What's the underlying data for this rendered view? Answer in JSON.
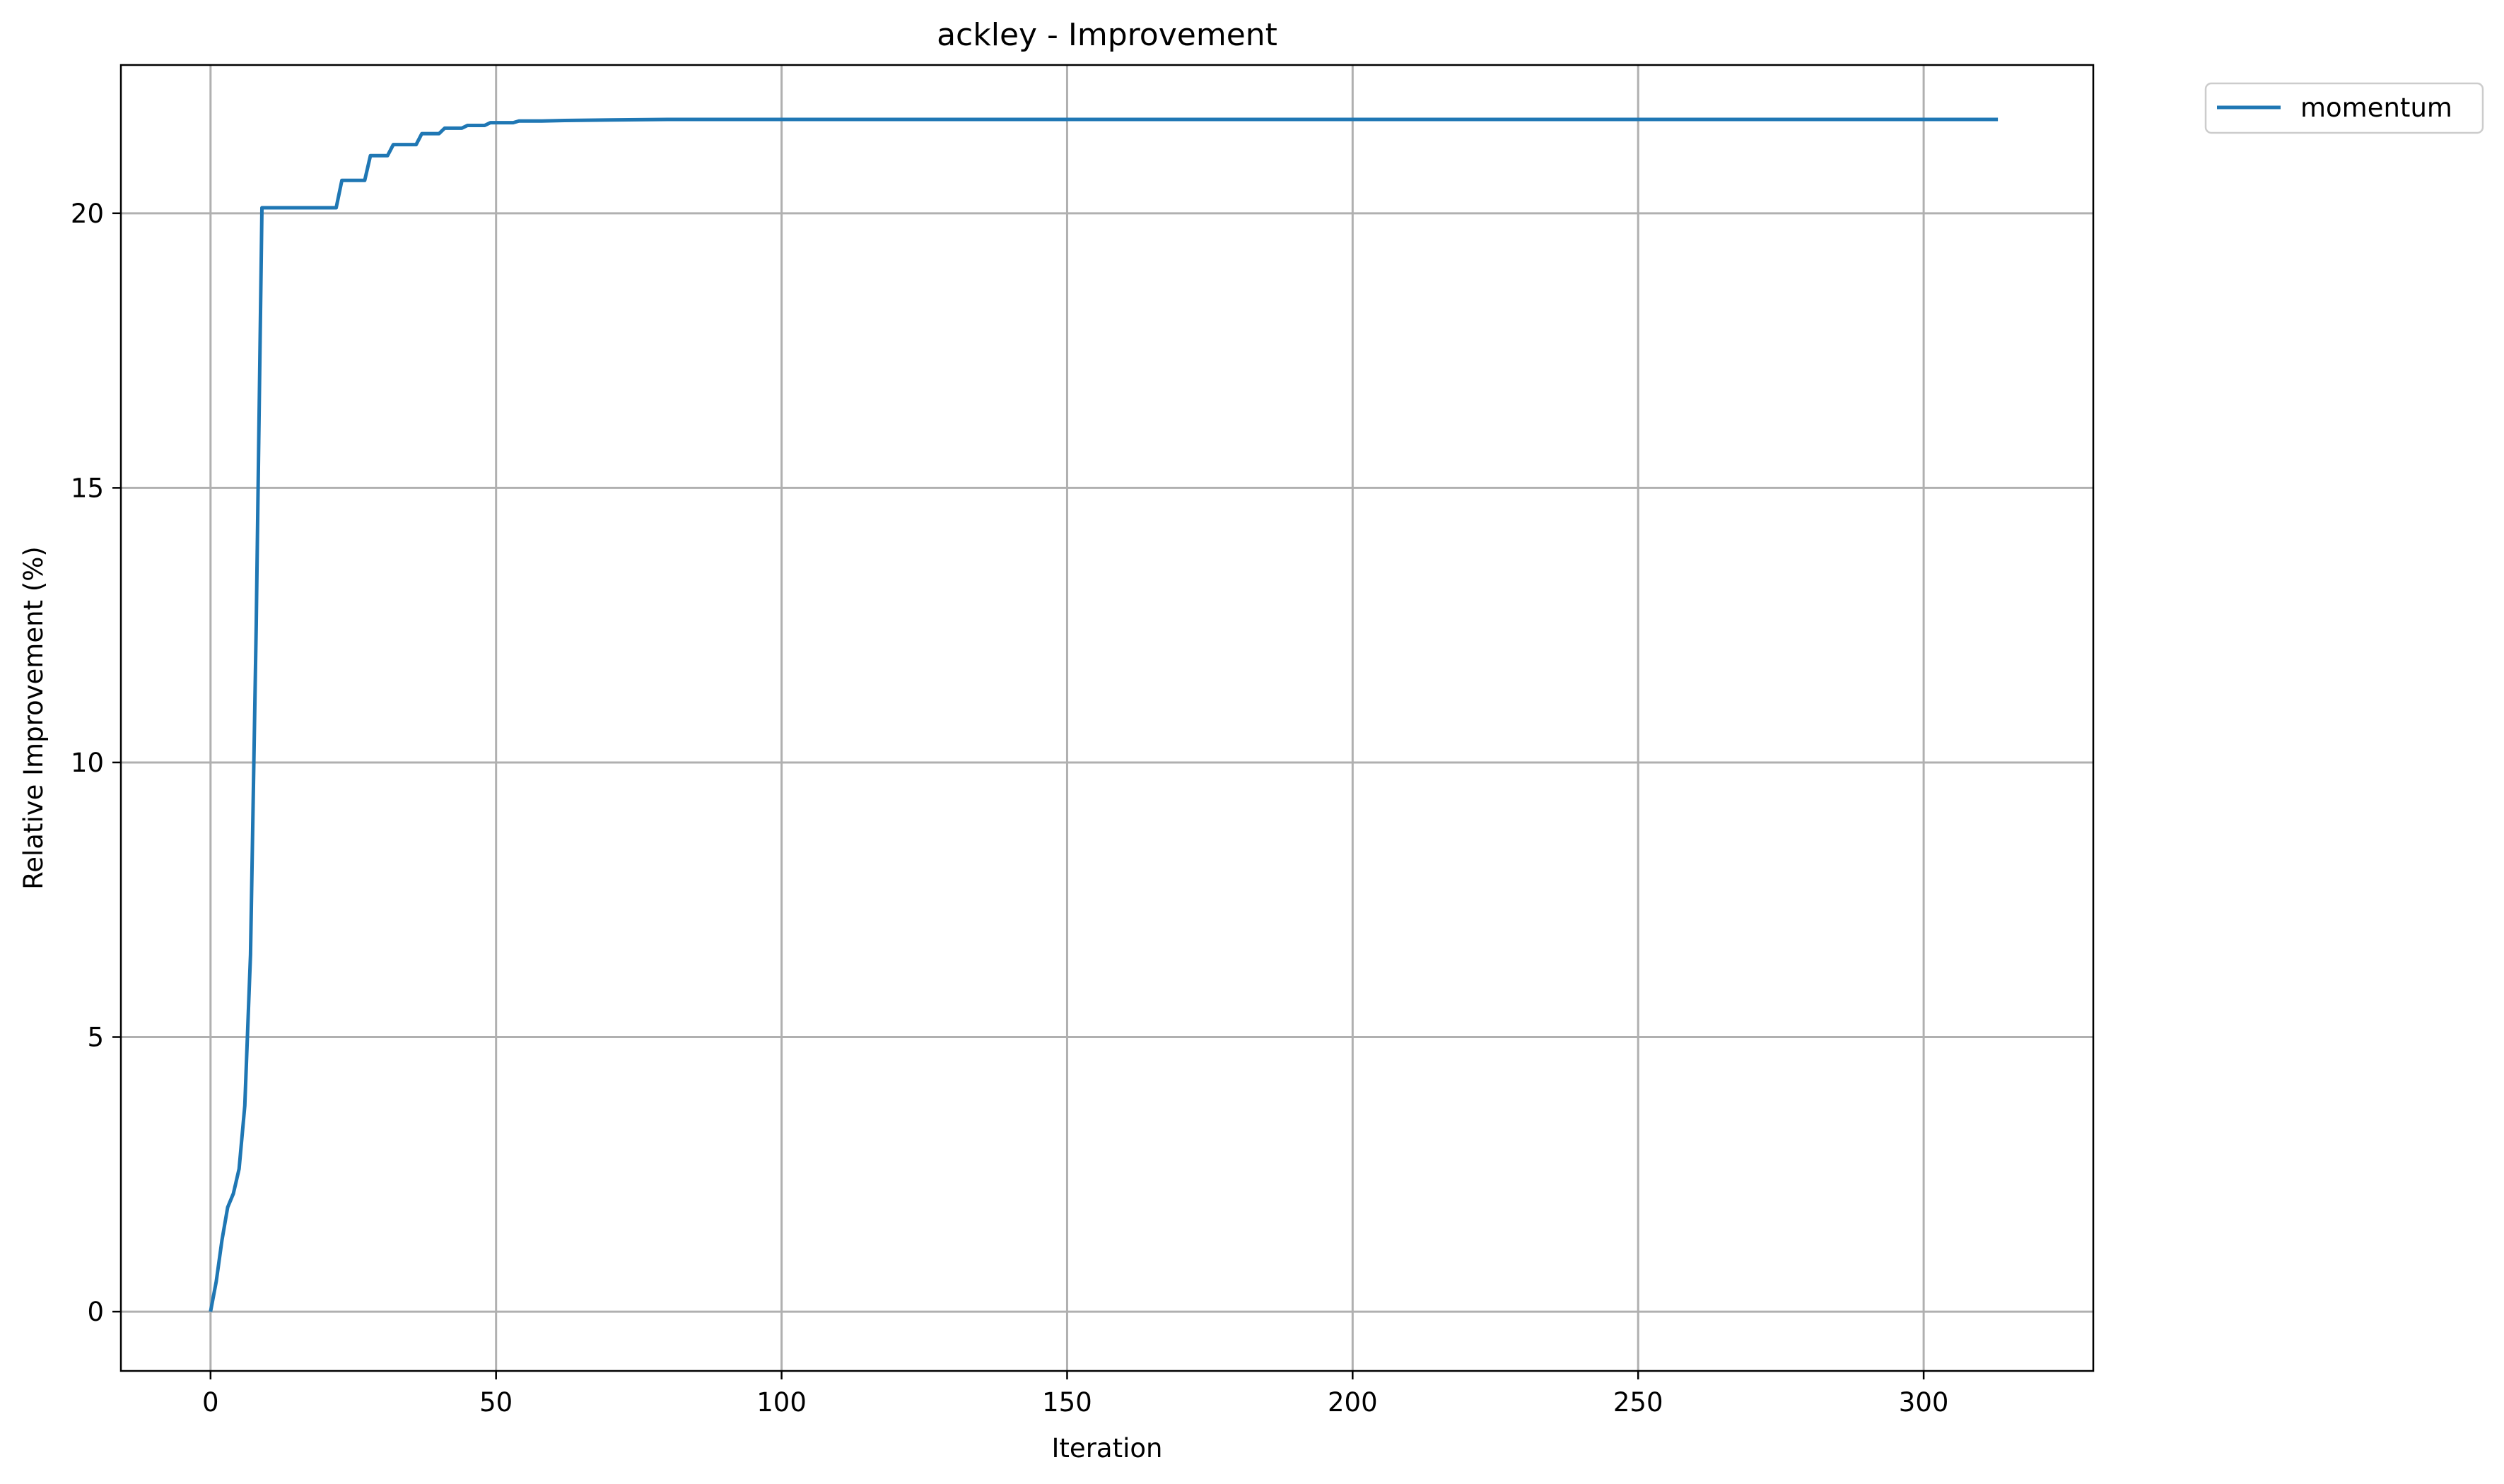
{
  "chart_data": {
    "type": "line",
    "title": "ackley - Improvement",
    "xlabel": "Iteration",
    "ylabel": "Relative Improvement (%)",
    "xlim": [
      -15.7,
      329.7
    ],
    "ylim": [
      -1.08,
      22.7
    ],
    "xticks": [
      0,
      50,
      100,
      150,
      200,
      250,
      300
    ],
    "yticks": [
      0,
      5,
      10,
      15,
      20
    ],
    "grid": true,
    "legend_position": "outside-top-right",
    "series": [
      {
        "name": "momentum",
        "color": "#1f77b4",
        "points": [
          [
            0,
            0.0
          ],
          [
            1,
            0.55
          ],
          [
            2,
            1.3
          ],
          [
            3,
            1.9
          ],
          [
            4,
            2.15
          ],
          [
            5,
            2.6
          ],
          [
            6,
            3.75
          ],
          [
            7,
            6.5
          ],
          [
            8,
            12.5
          ],
          [
            9,
            20.1
          ],
          [
            22,
            20.1
          ],
          [
            23,
            20.6
          ],
          [
            27,
            20.6
          ],
          [
            28,
            21.05
          ],
          [
            31,
            21.05
          ],
          [
            32,
            21.25
          ],
          [
            36,
            21.25
          ],
          [
            37,
            21.45
          ],
          [
            40,
            21.45
          ],
          [
            41,
            21.55
          ],
          [
            44,
            21.55
          ],
          [
            45,
            21.6
          ],
          [
            48,
            21.6
          ],
          [
            49,
            21.65
          ],
          [
            53,
            21.65
          ],
          [
            54,
            21.68
          ],
          [
            58,
            21.68
          ],
          [
            62,
            21.69
          ],
          [
            70,
            21.7
          ],
          [
            80,
            21.71
          ],
          [
            100,
            21.71
          ],
          [
            150,
            21.71
          ],
          [
            200,
            21.71
          ],
          [
            250,
            21.71
          ],
          [
            313,
            21.71
          ]
        ]
      }
    ]
  }
}
